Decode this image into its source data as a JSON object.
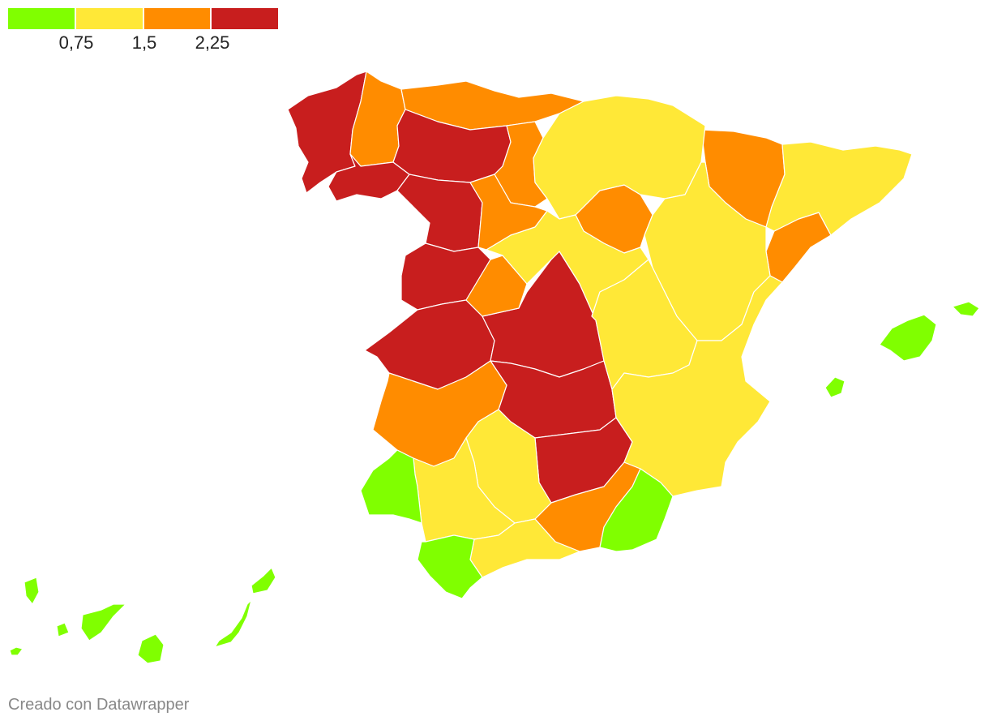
{
  "legend": {
    "colors": [
      "#80ff00",
      "#ffe837",
      "#ff8c00",
      "#c81e1e"
    ],
    "labels": [
      "0,75",
      "1,5",
      "2,25"
    ]
  },
  "map": {
    "regions": [
      {
        "name": "galicia-west",
        "class": 3
      },
      {
        "name": "lugo",
        "class": 2
      },
      {
        "name": "asturias-cantabria",
        "class": 2
      },
      {
        "name": "ourense",
        "class": 3
      },
      {
        "name": "leon-palencia",
        "class": 3
      },
      {
        "name": "zamora",
        "class": 3
      },
      {
        "name": "salamanca",
        "class": 3
      },
      {
        "name": "caceres",
        "class": 3
      },
      {
        "name": "toledo",
        "class": 3
      },
      {
        "name": "ciudad-real",
        "class": 3
      },
      {
        "name": "albacete-east",
        "class": 3
      },
      {
        "name": "burgos",
        "class": 2
      },
      {
        "name": "valladolid",
        "class": 2
      },
      {
        "name": "avila",
        "class": 2
      },
      {
        "name": "badajoz",
        "class": 2
      },
      {
        "name": "jaen-granada",
        "class": 2
      },
      {
        "name": "soria",
        "class": 2
      },
      {
        "name": "huesca",
        "class": 2
      },
      {
        "name": "tarragona",
        "class": 2
      },
      {
        "name": "basque-navarra-rioja",
        "class": 1
      },
      {
        "name": "zaragoza-teruel",
        "class": 1
      },
      {
        "name": "segovia-madrid",
        "class": 1
      },
      {
        "name": "cuenca-guadalajara",
        "class": 1
      },
      {
        "name": "catalonia-north",
        "class": 1
      },
      {
        "name": "valencia-murcia",
        "class": 1
      },
      {
        "name": "cordoba",
        "class": 1
      },
      {
        "name": "sevilla",
        "class": 1
      },
      {
        "name": "malaga",
        "class": 1
      },
      {
        "name": "huelva",
        "class": 0
      },
      {
        "name": "cadiz",
        "class": 0
      },
      {
        "name": "almeria",
        "class": 0
      },
      {
        "name": "mallorca",
        "class": 0
      },
      {
        "name": "menorca",
        "class": 0
      },
      {
        "name": "ibiza",
        "class": 0
      },
      {
        "name": "canary-islands",
        "class": 0
      }
    ]
  },
  "footer": {
    "credit": "Creado con Datawrapper"
  }
}
